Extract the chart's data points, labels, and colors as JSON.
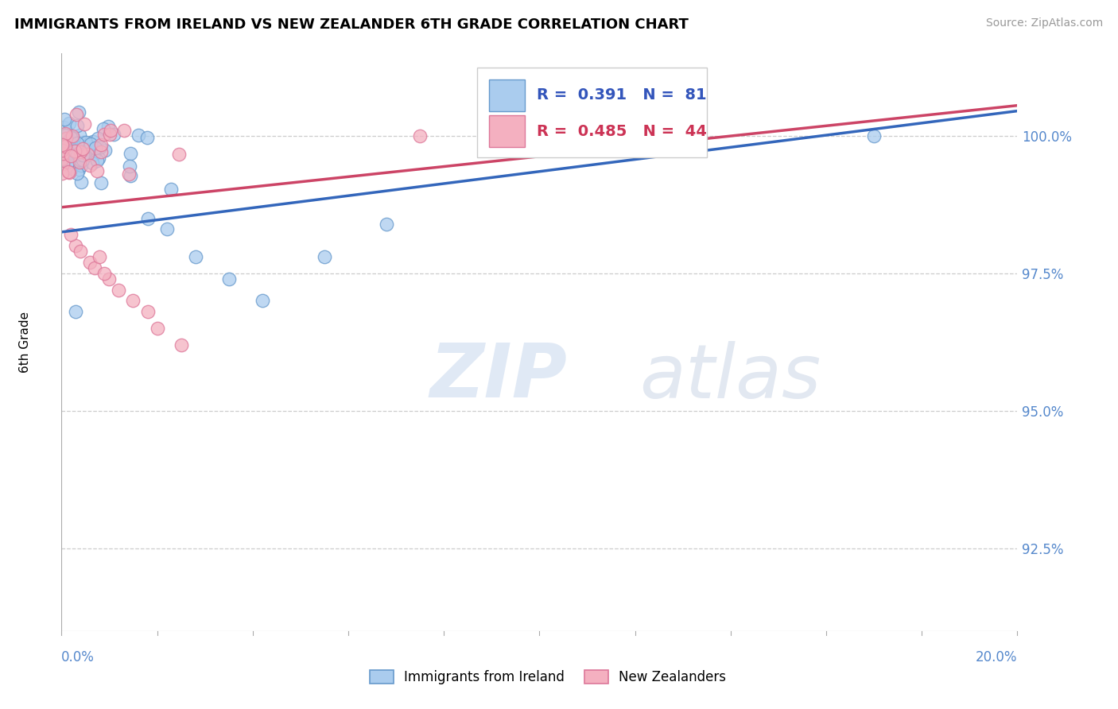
{
  "title": "IMMIGRANTS FROM IRELAND VS NEW ZEALANDER 6TH GRADE CORRELATION CHART",
  "source": "Source: ZipAtlas.com",
  "ylabel_label": "6th Grade",
  "xmin": 0.0,
  "xmax": 20.0,
  "ymin": 91.0,
  "ymax": 101.5,
  "ytick_labels": [
    "100.0%",
    "97.5%",
    "95.0%",
    "92.5%"
  ],
  "ytick_values": [
    100.0,
    97.5,
    95.0,
    92.5
  ],
  "legend_blue_label": "Immigrants from Ireland",
  "legend_pink_label": "New Zealanders",
  "r_blue": 0.391,
  "n_blue": 81,
  "r_pink": 0.485,
  "n_pink": 44,
  "blue_color": "#aaccee",
  "pink_color": "#f4b0c0",
  "blue_edge_color": "#6699cc",
  "pink_edge_color": "#dd7799",
  "blue_line_color": "#3366bb",
  "pink_line_color": "#cc4466",
  "watermark": "ZIPatlas",
  "watermark_zip_color": "#c8d8ee",
  "watermark_atlas_color": "#c0c8d8"
}
